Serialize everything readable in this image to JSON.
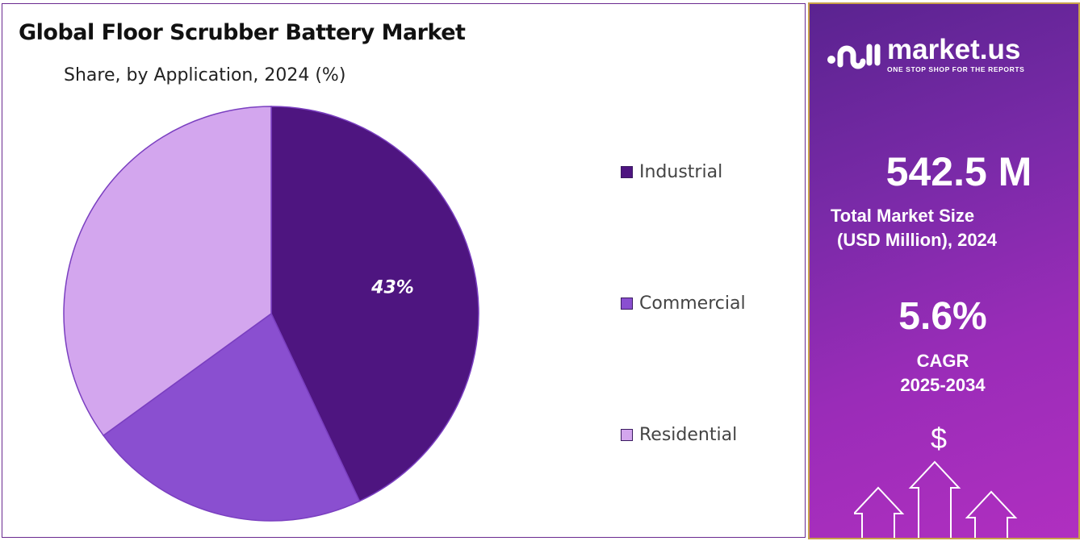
{
  "chart_data": {
    "type": "pie",
    "title": "Global Floor Scrubber Battery Market",
    "subtitle": "Share, by Application, 2024 (%)",
    "categories": [
      "Industrial",
      "Commercial",
      "Residential"
    ],
    "values": [
      43,
      22,
      35
    ],
    "data_labels": [
      "43%",
      "",
      ""
    ],
    "colors": [
      "#4e1580",
      "#8a4fd0",
      "#d3a6ee"
    ],
    "legend_position": "right"
  },
  "sidebar": {
    "brand": "market.us",
    "tagline": "ONE STOP SHOP FOR THE REPORTS",
    "market_size": "542.5 M",
    "market_size_label_1": "Total Market Size",
    "market_size_label_2": "(USD Million), 2024",
    "cagr": "5.6%",
    "cagr_label": "CAGR",
    "cagr_period": "2025-2034",
    "dollar": "$"
  }
}
